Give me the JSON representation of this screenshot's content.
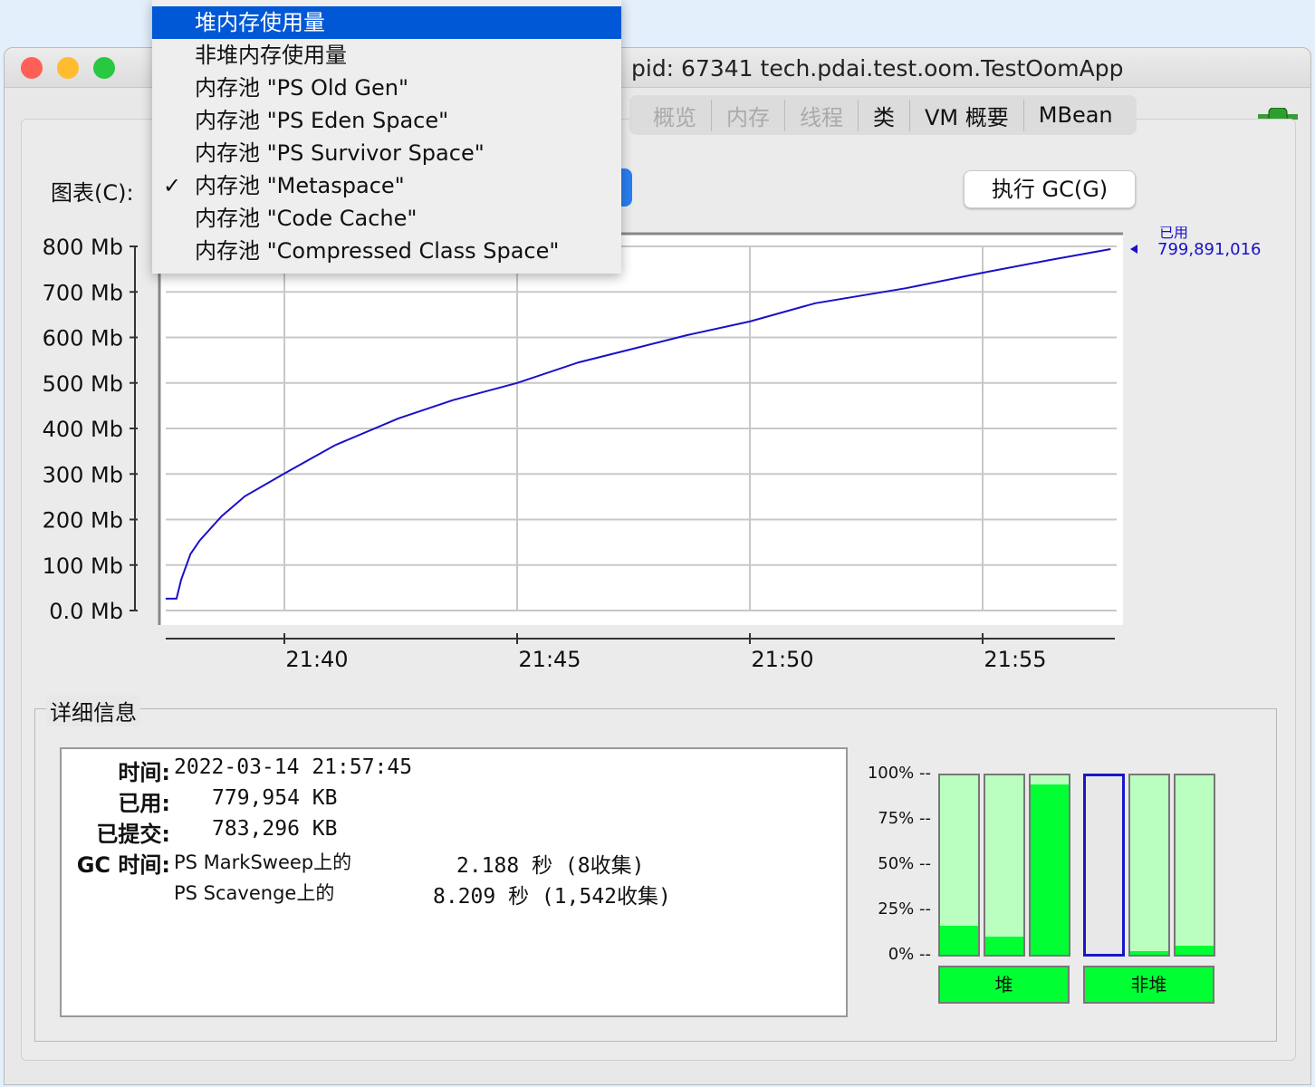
{
  "window": {
    "title": "pid: 67341 tech.pdai.test.oom.TestOomApp"
  },
  "tabs": [
    {
      "label": "概览",
      "faded": true
    },
    {
      "label": "内存",
      "faded": true
    },
    {
      "label": "线程",
      "faded": true
    },
    {
      "label": "类"
    },
    {
      "label": "VM 概要"
    },
    {
      "label": "MBean"
    }
  ],
  "chart_label": "图表(C):",
  "gc_button": "执行 GC(G)",
  "menu": {
    "items": [
      "堆内存使用量",
      "非堆内存使用量",
      "内存池 \"PS Old Gen\"",
      "内存池 \"PS Eden Space\"",
      "内存池 \"PS Survivor Space\"",
      "内存池 \"Metaspace\"",
      "内存池 \"Code Cache\"",
      "内存池 \"Compressed Class Space\""
    ],
    "highlighted": 0,
    "checked": 5,
    "check_mark": "✓"
  },
  "chart_data": {
    "type": "line",
    "y_ticks": [
      "0.0 Mb",
      "100 Mb",
      "200 Mb",
      "300 Mb",
      "400 Mb",
      "500 Mb",
      "600 Mb",
      "700 Mb",
      "800 Mb"
    ],
    "x_ticks": [
      "21:40",
      "21:45",
      "21:50",
      "21:55"
    ],
    "ylim": [
      0,
      800
    ],
    "xlim": [
      "21:37:27",
      "21:57:45"
    ],
    "grid": true,
    "series": [
      {
        "name": "已用",
        "color": "#1a10c8",
        "points": [
          [
            "21:37:27",
            26
          ],
          [
            "21:37:41",
            26
          ],
          [
            "21:37:47",
            68
          ],
          [
            "21:37:59",
            124
          ],
          [
            "21:38:11",
            154
          ],
          [
            "21:38:39",
            207
          ],
          [
            "21:39:09",
            251
          ],
          [
            "21:40:00",
            301
          ],
          [
            "21:41:05",
            363
          ],
          [
            "21:42:27",
            422
          ],
          [
            "21:43:37",
            462
          ],
          [
            "21:45:00",
            500
          ],
          [
            "21:46:19",
            545
          ],
          [
            "21:47:29",
            575
          ],
          [
            "21:48:39",
            605
          ],
          [
            "21:50:00",
            635
          ],
          [
            "21:51:24",
            675
          ],
          [
            "21:53:21",
            708
          ],
          [
            "21:55:00",
            742
          ],
          [
            "21:56:26",
            770
          ],
          [
            "21:57:45",
            794
          ]
        ]
      }
    ],
    "current_label": "已用",
    "current_value": "799,891,016"
  },
  "details": {
    "title": "详细信息",
    "time_label": "时间:",
    "time": "2022-03-14 21:57:45",
    "used_label": "已用:",
    "used": "779,954 KB",
    "committed_label": "已提交:",
    "committed": "783,296 KB",
    "gc_label": "GC 时间:",
    "gc": [
      {
        "name": "PS MarkSweep上的",
        "value": "2.188 秒 (8收集)"
      },
      {
        "name": "PS Scavenge上的",
        "value": "8.209 秒 (1,542收集)"
      }
    ]
  },
  "usage_bars": {
    "pct_ticks": [
      "100% --",
      "75% --",
      "50% --",
      "25% --",
      "0% --"
    ],
    "heap_pct": [
      16,
      10,
      95
    ],
    "nonheap_pct": [
      0,
      2,
      5
    ],
    "selected_nonheap": 0,
    "heap_label": "堆",
    "nonheap_label": "非堆"
  }
}
